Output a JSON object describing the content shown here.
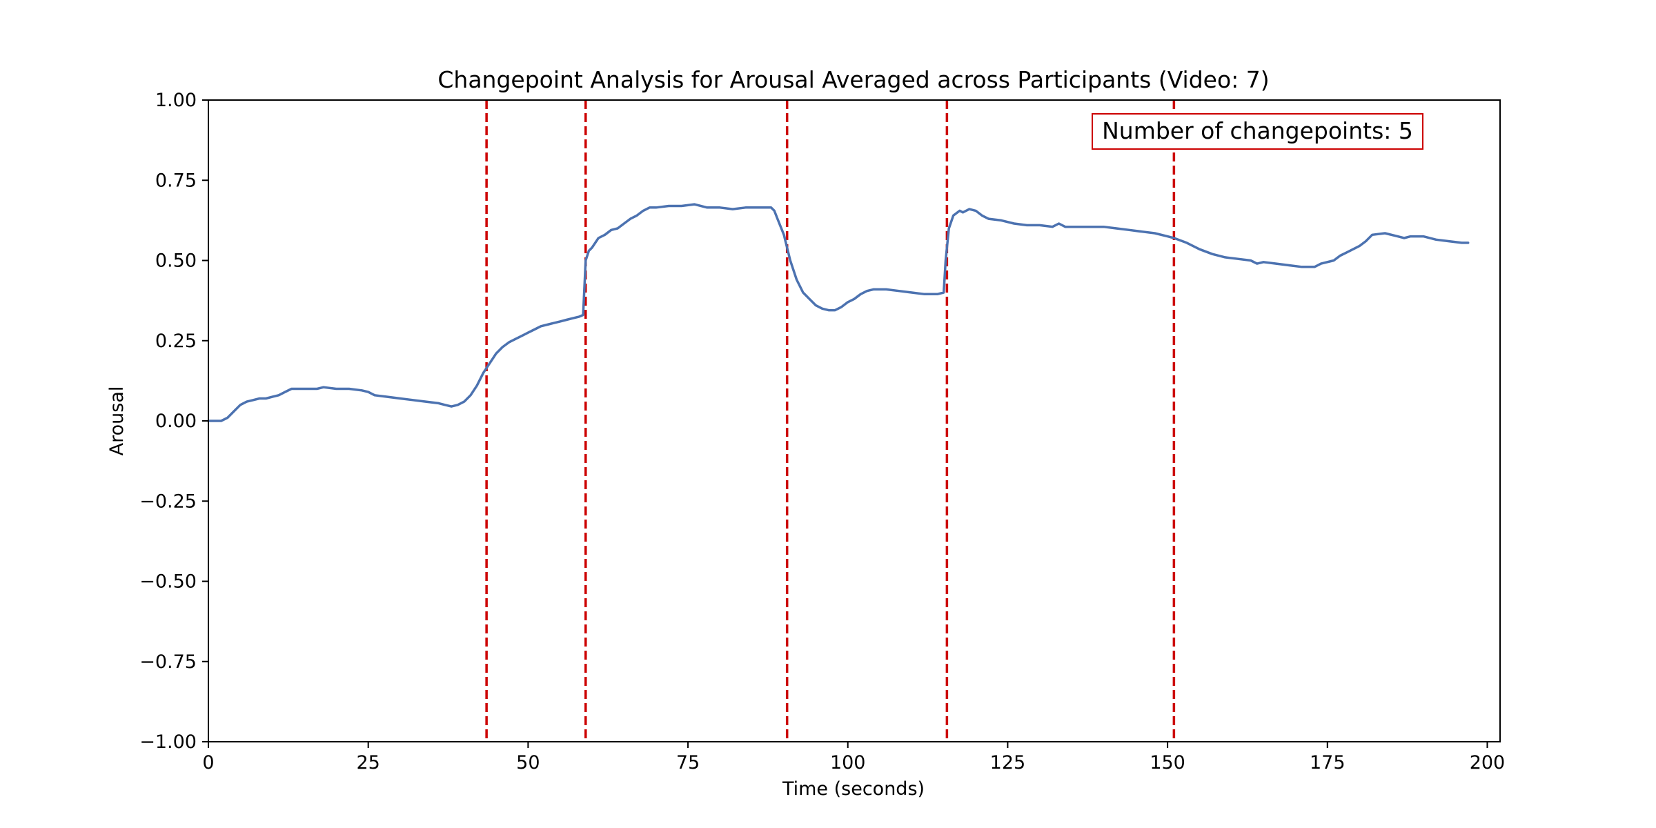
{
  "chart_data": {
    "type": "line",
    "title": "Changepoint Analysis for Arousal Averaged across Participants (Video: 7)",
    "xlabel": "Time (seconds)",
    "ylabel": "Arousal",
    "xlim": [
      0,
      202
    ],
    "ylim": [
      -1.0,
      1.0
    ],
    "x_ticks": [
      0,
      25,
      50,
      75,
      100,
      125,
      150,
      175,
      200
    ],
    "x_tick_labels": [
      "0",
      "25",
      "50",
      "75",
      "100",
      "125",
      "150",
      "175",
      "200"
    ],
    "y_ticks": [
      -1.0,
      -0.75,
      -0.5,
      -0.25,
      0.0,
      0.25,
      0.5,
      0.75,
      1.0
    ],
    "y_tick_labels": [
      "−1.00",
      "−0.75",
      "−0.50",
      "−0.25",
      "0.00",
      "0.25",
      "0.50",
      "0.75",
      "1.00"
    ],
    "grid": false,
    "series": [
      {
        "color": "#4c72b0",
        "points": [
          [
            0,
            0.0
          ],
          [
            2,
            0.0
          ],
          [
            3,
            0.01
          ],
          [
            4,
            0.03
          ],
          [
            5,
            0.05
          ],
          [
            6,
            0.06
          ],
          [
            7,
            0.065
          ],
          [
            8,
            0.07
          ],
          [
            9,
            0.07
          ],
          [
            10,
            0.075
          ],
          [
            11,
            0.08
          ],
          [
            12,
            0.09
          ],
          [
            13,
            0.1
          ],
          [
            14,
            0.1
          ],
          [
            16,
            0.1
          ],
          [
            17,
            0.1
          ],
          [
            18,
            0.105
          ],
          [
            20,
            0.1
          ],
          [
            22,
            0.1
          ],
          [
            24,
            0.095
          ],
          [
            25,
            0.09
          ],
          [
            26,
            0.08
          ],
          [
            28,
            0.075
          ],
          [
            30,
            0.07
          ],
          [
            32,
            0.065
          ],
          [
            34,
            0.06
          ],
          [
            36,
            0.055
          ],
          [
            37,
            0.05
          ],
          [
            38,
            0.045
          ],
          [
            39,
            0.05
          ],
          [
            40,
            0.06
          ],
          [
            41,
            0.08
          ],
          [
            42,
            0.11
          ],
          [
            43,
            0.15
          ],
          [
            44,
            0.18
          ],
          [
            45,
            0.21
          ],
          [
            46,
            0.23
          ],
          [
            47,
            0.245
          ],
          [
            48,
            0.255
          ],
          [
            49,
            0.265
          ],
          [
            50,
            0.275
          ],
          [
            51,
            0.285
          ],
          [
            52,
            0.295
          ],
          [
            53,
            0.3
          ],
          [
            54,
            0.305
          ],
          [
            55,
            0.31
          ],
          [
            56,
            0.315
          ],
          [
            57,
            0.32
          ],
          [
            58,
            0.325
          ],
          [
            58.6,
            0.33
          ],
          [
            59,
            0.5
          ],
          [
            59.5,
            0.53
          ],
          [
            60,
            0.54
          ],
          [
            61,
            0.57
          ],
          [
            62,
            0.58
          ],
          [
            63,
            0.595
          ],
          [
            64,
            0.6
          ],
          [
            65,
            0.615
          ],
          [
            66,
            0.63
          ],
          [
            67,
            0.64
          ],
          [
            68,
            0.655
          ],
          [
            69,
            0.665
          ],
          [
            70,
            0.665
          ],
          [
            72,
            0.67
          ],
          [
            74,
            0.67
          ],
          [
            76,
            0.675
          ],
          [
            78,
            0.665
          ],
          [
            80,
            0.665
          ],
          [
            82,
            0.66
          ],
          [
            84,
            0.665
          ],
          [
            86,
            0.665
          ],
          [
            88,
            0.665
          ],
          [
            88.5,
            0.655
          ],
          [
            89,
            0.63
          ],
          [
            90,
            0.58
          ],
          [
            91,
            0.5
          ],
          [
            92,
            0.44
          ],
          [
            93,
            0.4
          ],
          [
            94,
            0.38
          ],
          [
            95,
            0.36
          ],
          [
            96,
            0.35
          ],
          [
            97,
            0.345
          ],
          [
            98,
            0.345
          ],
          [
            99,
            0.355
          ],
          [
            100,
            0.37
          ],
          [
            101,
            0.38
          ],
          [
            102,
            0.395
          ],
          [
            103,
            0.405
          ],
          [
            104,
            0.41
          ],
          [
            106,
            0.41
          ],
          [
            108,
            0.405
          ],
          [
            110,
            0.4
          ],
          [
            112,
            0.395
          ],
          [
            114,
            0.395
          ],
          [
            115,
            0.4
          ],
          [
            115.3,
            0.5
          ],
          [
            115.8,
            0.6
          ],
          [
            116.5,
            0.64
          ],
          [
            117.5,
            0.655
          ],
          [
            118,
            0.65
          ],
          [
            119,
            0.66
          ],
          [
            120,
            0.655
          ],
          [
            121,
            0.64
          ],
          [
            122,
            0.63
          ],
          [
            124,
            0.625
          ],
          [
            126,
            0.615
          ],
          [
            128,
            0.61
          ],
          [
            130,
            0.61
          ],
          [
            132,
            0.605
          ],
          [
            133,
            0.615
          ],
          [
            134,
            0.605
          ],
          [
            136,
            0.605
          ],
          [
            138,
            0.605
          ],
          [
            140,
            0.605
          ],
          [
            142,
            0.6
          ],
          [
            144,
            0.595
          ],
          [
            146,
            0.59
          ],
          [
            148,
            0.585
          ],
          [
            150,
            0.575
          ],
          [
            151,
            0.57
          ],
          [
            153,
            0.555
          ],
          [
            155,
            0.535
          ],
          [
            157,
            0.52
          ],
          [
            159,
            0.51
          ],
          [
            161,
            0.505
          ],
          [
            163,
            0.5
          ],
          [
            164,
            0.49
          ],
          [
            165,
            0.495
          ],
          [
            167,
            0.49
          ],
          [
            169,
            0.485
          ],
          [
            171,
            0.48
          ],
          [
            173,
            0.48
          ],
          [
            174,
            0.49
          ],
          [
            176,
            0.5
          ],
          [
            177,
            0.515
          ],
          [
            178,
            0.525
          ],
          [
            180,
            0.545
          ],
          [
            181,
            0.56
          ],
          [
            182,
            0.58
          ],
          [
            184,
            0.585
          ],
          [
            186,
            0.575
          ],
          [
            187,
            0.57
          ],
          [
            188,
            0.575
          ],
          [
            190,
            0.575
          ],
          [
            192,
            0.565
          ],
          [
            194,
            0.56
          ],
          [
            196,
            0.555
          ],
          [
            197,
            0.555
          ]
        ]
      }
    ],
    "changepoints": [
      43.5,
      59,
      90.5,
      115.5,
      151
    ],
    "changepoint_color": "#cc0000",
    "annotation": {
      "text": "Number of changepoints: 5",
      "color": "#cc0000",
      "placement": "top-right"
    }
  }
}
